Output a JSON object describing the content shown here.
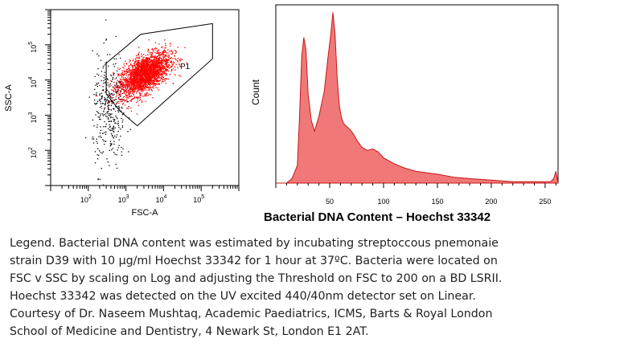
{
  "figure_title": "Bacterial DNA Content – Hoechst 33342",
  "legend_lines": [
    "Legend. Bacterial DNA content was estimated by incubating streptoccous pnemonaie",
    "strain D39 with 10 μg/ml Hoechst 33342 for 1  hour at 37ºC. Bacteria were located on",
    "FSC v SSC by scaling on Log and adjusting the Threshold on FSC to 200 on a BD LSRII.",
    " Hoechst 33342 was detected on the UV excited  440/40nm detector set on Linear.",
    "Courtesy of Dr. Naseem Mushtaq, Academic Paediatrics, ICMS, Barts & Royal London",
    "School of Medicine and Dentistry, 4 Newark St, London E1 2AT."
  ],
  "colors": {
    "events": "#ff0000",
    "debris": "#000000",
    "histogram_fill": "#f07878",
    "histogram_line": "#c81818",
    "axis": "#000000"
  },
  "chart_data": [
    {
      "type": "scatter",
      "xlabel": "FSC-A",
      "ylabel": "SSC-A",
      "scale": "log",
      "xlim": [
        10,
        1000000
      ],
      "ylim": [
        10,
        1000000
      ],
      "xtick_labels": [
        "10^2",
        "10^3",
        "10^4",
        "10^5"
      ],
      "ytick_labels": [
        "10^2",
        "10^3",
        "10^4",
        "10^5"
      ],
      "gate_label": "P1",
      "gate_polygon": [
        [
          300,
          30000
        ],
        [
          2500,
          200000
        ],
        [
          200000,
          400000
        ],
        [
          200000,
          40000
        ],
        [
          2000,
          500
        ],
        [
          700,
          1300
        ],
        [
          300,
          4000
        ]
      ],
      "series": [
        {
          "role": "gated",
          "center": [
            3000,
            15000
          ],
          "spread_log10": [
            0.34,
            0.32
          ],
          "count": 2600
        },
        {
          "role": "debris",
          "center": [
            350,
            1200
          ],
          "spread_log10": [
            0.22,
            0.8
          ],
          "count": 360
        }
      ]
    },
    {
      "type": "area",
      "xlabel": "",
      "ylabel": "Count",
      "xlim": [
        0,
        262
      ],
      "ylim": [
        0,
        120
      ],
      "xticks": [
        50,
        100,
        150,
        200,
        250
      ],
      "x": [
        0,
        10,
        15,
        20,
        22,
        24,
        26,
        28,
        30,
        33,
        36,
        40,
        45,
        48,
        51,
        53,
        55,
        57,
        59,
        61,
        63,
        66,
        69,
        72,
        76,
        80,
        85,
        90,
        95,
        100,
        110,
        120,
        130,
        140,
        150,
        165,
        180,
        200,
        220,
        240,
        255,
        258,
        260,
        262
      ],
      "y": [
        0,
        0,
        3,
        12,
        45,
        85,
        98,
        90,
        60,
        42,
        35,
        45,
        62,
        82,
        100,
        115,
        100,
        70,
        52,
        44,
        40,
        38,
        36,
        33,
        28,
        24,
        22,
        23,
        21,
        17,
        13,
        10,
        8,
        7,
        6,
        4,
        3,
        2,
        1,
        1,
        1,
        3,
        8,
        0
      ]
    }
  ]
}
